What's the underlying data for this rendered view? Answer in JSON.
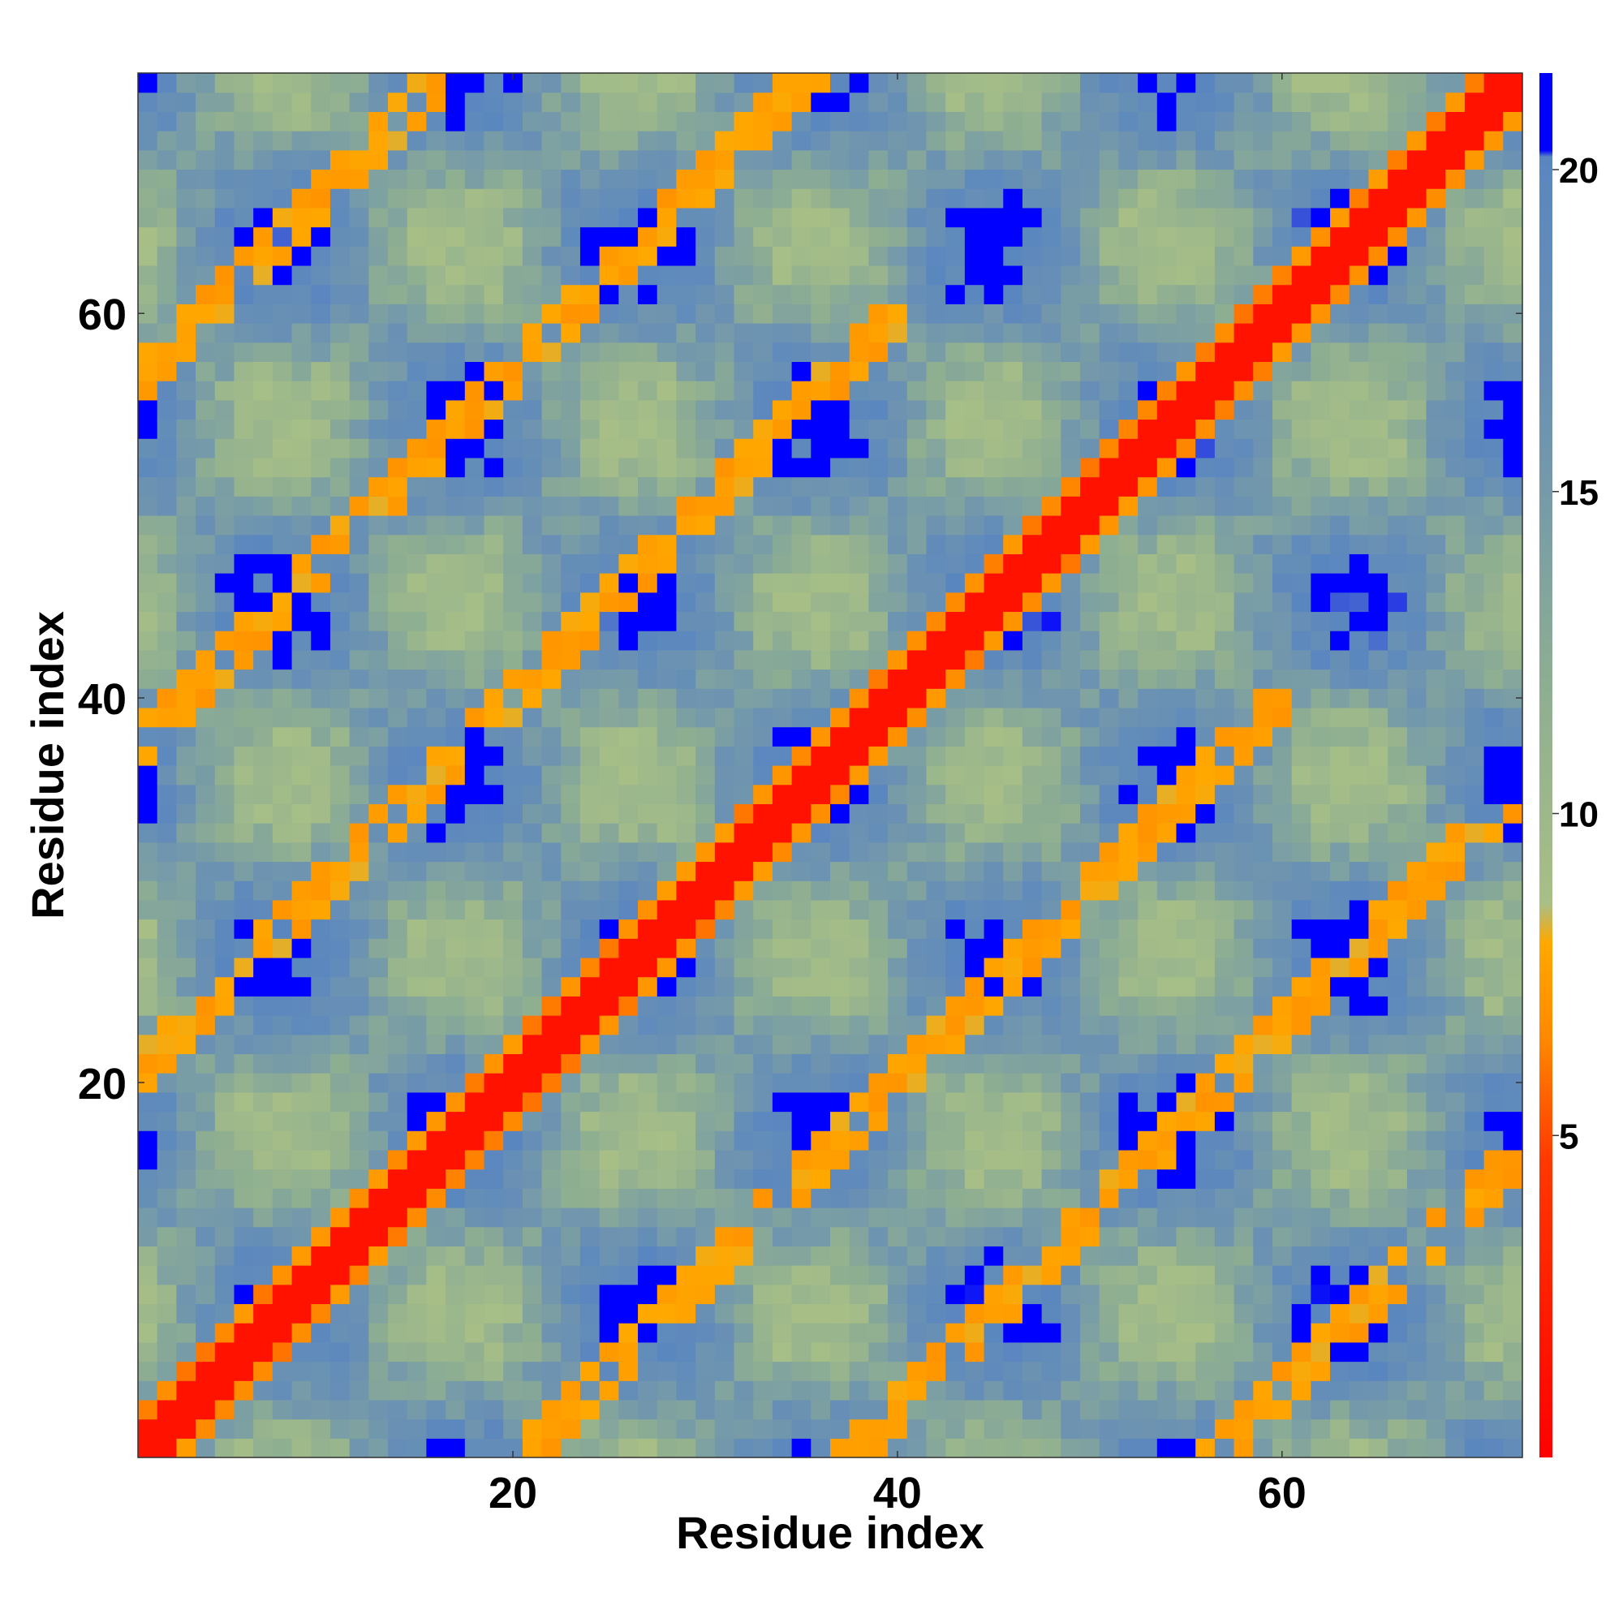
{
  "chart_data": {
    "type": "heatmap",
    "title": "",
    "xlabel": "Residue index",
    "ylabel": "Residue index",
    "x_range": [
      1,
      72
    ],
    "y_range": [
      1,
      72
    ],
    "x_ticks": [
      20,
      40,
      60
    ],
    "y_ticks": [
      20,
      40,
      60
    ],
    "n": 72,
    "value_range": [
      0,
      21.5
    ],
    "colorbar": {
      "ticks": [
        5,
        10,
        15,
        20
      ],
      "range": [
        0,
        21.5
      ],
      "stops": [
        {
          "value": 0,
          "color": "#ff0000"
        },
        {
          "value": 4.6,
          "color": "#ff3800"
        },
        {
          "value": 6.5,
          "color": "#ff8800"
        },
        {
          "value": 8,
          "color": "#ffa800"
        },
        {
          "value": 8.6,
          "color": "#a8bf86"
        },
        {
          "value": 12,
          "color": "#8eae92"
        },
        {
          "value": 16,
          "color": "#6e94b0"
        },
        {
          "value": 20.2,
          "color": "#5a86c0"
        },
        {
          "value": 20.3,
          "color": "#0000ff"
        },
        {
          "value": 21.5,
          "color": "#0000ff"
        }
      ]
    },
    "structure": {
      "diagonal_value": 1.5,
      "near_diagonal_value": 6,
      "helix_period": 18.5,
      "contact_bands": [
        {
          "offset": 20,
          "width": 2,
          "value": 7,
          "from": 1,
          "to": 40
        },
        {
          "offset": 37,
          "width": 2,
          "value": 7,
          "from": 1,
          "to": 36
        },
        {
          "offset": 56,
          "width": 2,
          "value": 7,
          "from": 1,
          "to": 16
        }
      ],
      "far_value": 21.2,
      "mid_value": 15,
      "valley_value": 10
    },
    "grid": false,
    "legend": "colorbar-right"
  }
}
